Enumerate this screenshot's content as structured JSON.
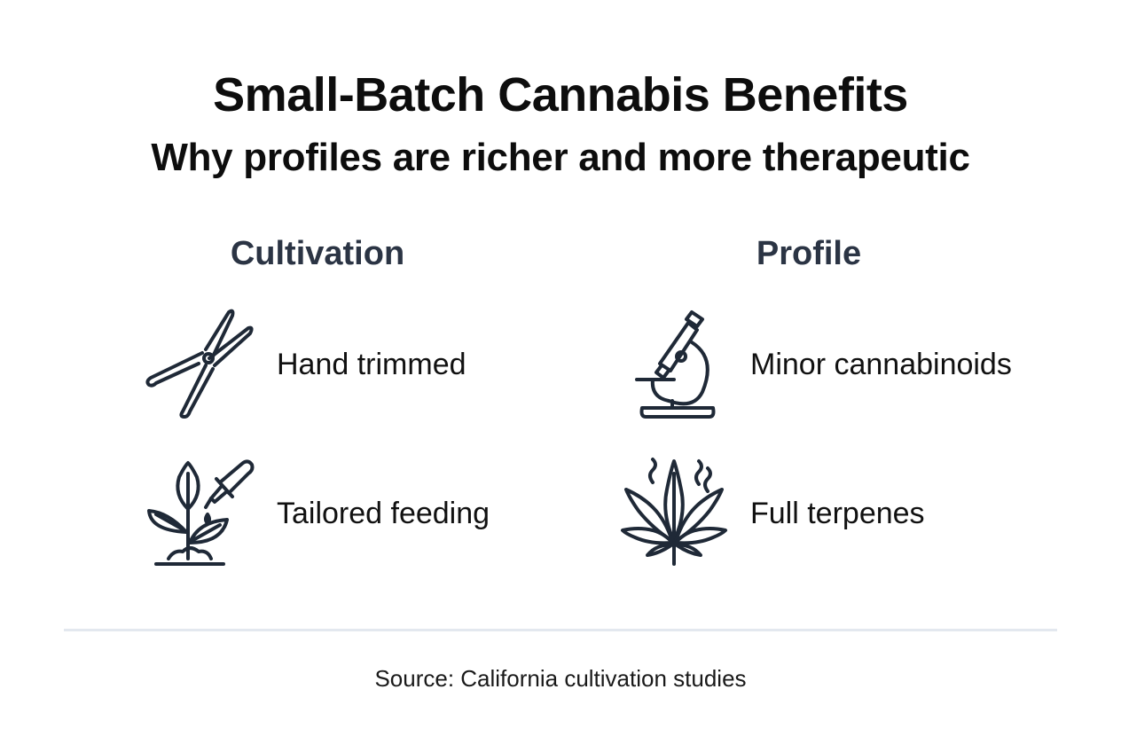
{
  "title": "Small-Batch Cannabis Benefits",
  "subtitle": "Why profiles are richer and more therapeutic",
  "columns": [
    {
      "heading": "Cultivation",
      "items": [
        {
          "label": "Hand trimmed",
          "icon": "pruning-shears-icon"
        },
        {
          "label": "Tailored feeding",
          "icon": "sprout-dropper-icon"
        }
      ]
    },
    {
      "heading": "Profile",
      "items": [
        {
          "label": "Minor cannabinoids",
          "icon": "microscope-icon"
        },
        {
          "label": "Full terpenes",
          "icon": "cannabis-leaf-aroma-icon"
        }
      ]
    }
  ],
  "source": "Source: California cultivation studies",
  "colors": {
    "text": "#111111",
    "heading": "#2b3444",
    "divider": "#e3e8ef",
    "icon_stroke": "#1f2937"
  }
}
